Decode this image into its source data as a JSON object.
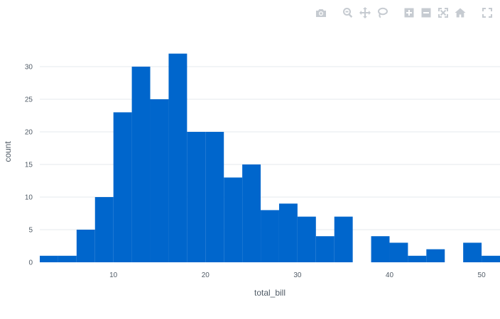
{
  "modebar": {
    "groups": [
      [
        "camera-icon"
      ],
      [
        "zoom-icon",
        "pan-icon",
        "lasso-icon"
      ],
      [
        "zoom-in-icon",
        "zoom-out-icon",
        "autoscale-icon",
        "home-icon"
      ],
      [
        "fullscreen-icon"
      ]
    ]
  },
  "chart_data": {
    "type": "bar",
    "title": "",
    "xlabel": "total_bill",
    "ylabel": "count",
    "bin_size": 2,
    "bins_start": [
      2,
      4,
      6,
      8,
      10,
      12,
      14,
      16,
      18,
      20,
      22,
      24,
      26,
      28,
      30,
      32,
      34,
      36,
      38,
      40,
      42,
      44,
      46,
      48,
      50
    ],
    "values": [
      1,
      1,
      5,
      10,
      23,
      30,
      25,
      32,
      20,
      20,
      13,
      15,
      8,
      9,
      7,
      4,
      7,
      0,
      4,
      3,
      1,
      2,
      0,
      3,
      1
    ],
    "xlim": [
      2,
      52
    ],
    "ylim": [
      0,
      33.7
    ],
    "xticks": [
      10,
      20,
      30,
      40,
      50
    ],
    "yticks": [
      0,
      5,
      10,
      15,
      20,
      25,
      30
    ],
    "grid": true,
    "bar_color": "#0066cc",
    "grid_color": "#e6e9ed"
  }
}
